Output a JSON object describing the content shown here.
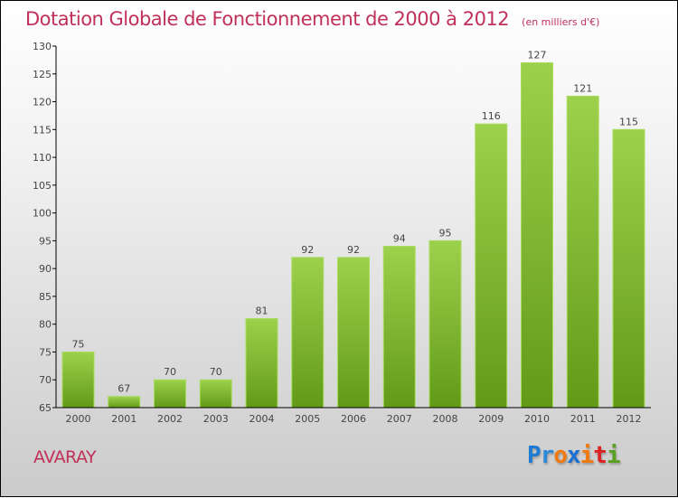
{
  "chart_data": {
    "type": "bar",
    "title": "Dotation Globale de Fonctionnement de 2000 à 2012",
    "subtitle": "(en milliers d'€)",
    "categories": [
      "2000",
      "2001",
      "2002",
      "2003",
      "2004",
      "2005",
      "2006",
      "2007",
      "2008",
      "2009",
      "2010",
      "2011",
      "2012"
    ],
    "values": [
      75,
      67,
      70,
      70,
      81,
      92,
      92,
      94,
      95,
      116,
      127,
      121,
      115
    ],
    "ylim": [
      65,
      130
    ],
    "yticks": [
      65,
      70,
      75,
      80,
      85,
      90,
      95,
      100,
      105,
      110,
      115,
      120,
      125,
      130
    ],
    "xlabel": "",
    "ylabel": "",
    "bar_color": "#7ab42a",
    "grid": false
  },
  "footer": {
    "city": "AVARAY",
    "logo": "Proxiti"
  }
}
